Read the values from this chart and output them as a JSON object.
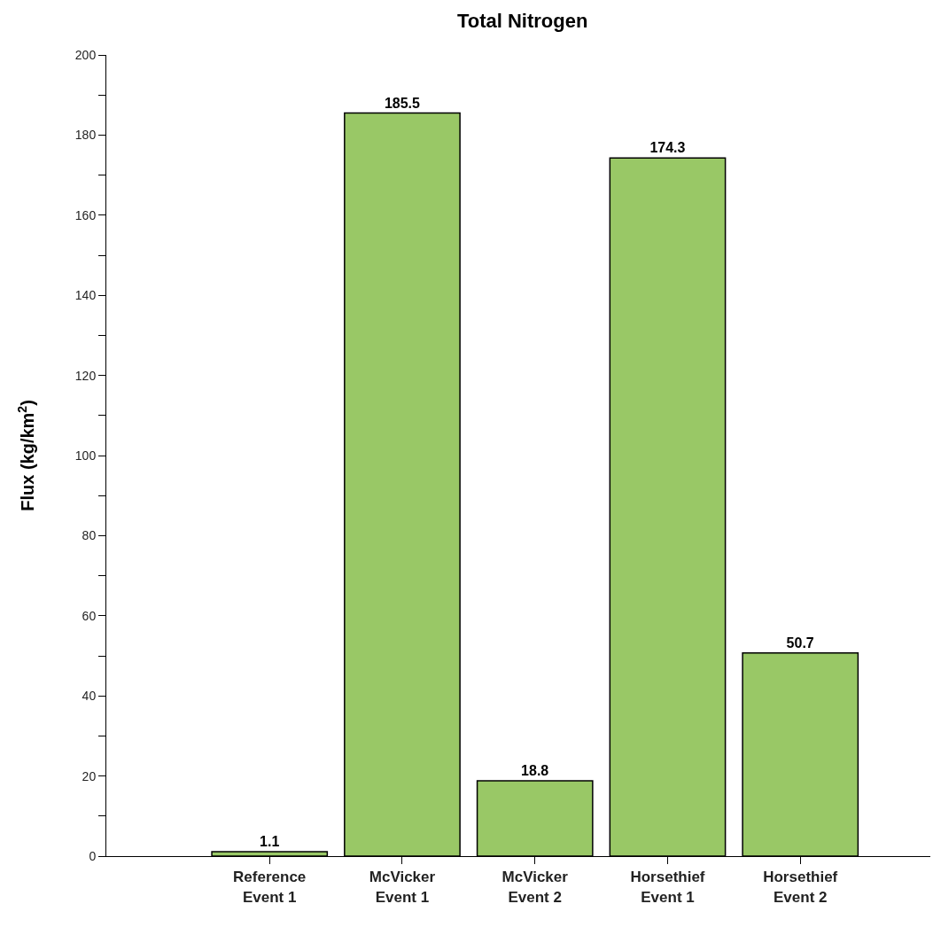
{
  "chart_data": {
    "type": "bar",
    "title": "Total Nitrogen",
    "ylabel": "Flux (kg/km$^{2}$)",
    "categories": [
      "Reference\nEvent 1",
      "McVicker\nEvent 1",
      "McVicker\nEvent 2",
      "Horsethief\nEvent 1",
      "Horsethief\nEvent 2"
    ],
    "values": [
      1.1,
      185.5,
      18.8,
      174.3,
      50.7
    ],
    "color": "#99c866",
    "data_labels": true,
    "ylim": [
      0,
      200
    ],
    "yticks": [
      0,
      {
        "value": 10,
        "label": null
      },
      20,
      {
        "value": 30,
        "label": null
      },
      40,
      {
        "value": 50,
        "label": null
      },
      60,
      {
        "value": 70,
        "label": null
      },
      80,
      {
        "value": 90,
        "label": null
      },
      100,
      {
        "value": 110,
        "label": null
      },
      120,
      {
        "value": 130,
        "label": null
      },
      140,
      {
        "value": 150,
        "label": null
      },
      160,
      {
        "value": 170,
        "label": null
      },
      180,
      {
        "value": 190,
        "label": null
      },
      200
    ],
    "grid": false
  }
}
